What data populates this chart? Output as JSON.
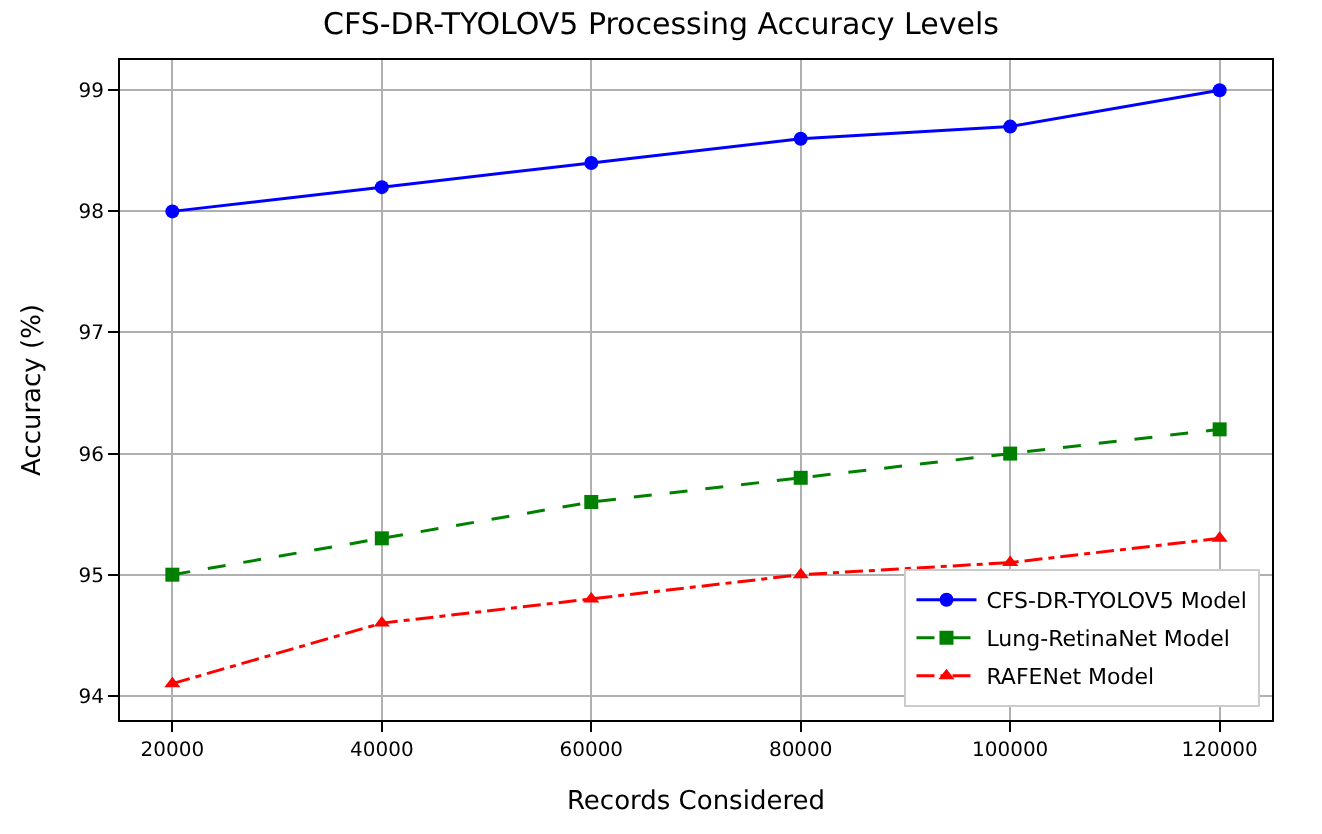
{
  "chart_data": {
    "type": "line",
    "title": "CFS-DR-TYOLOV5 Processing Accuracy Levels",
    "xlabel": "Records Considered",
    "ylabel": "Accuracy (%)",
    "x": [
      20000,
      40000,
      60000,
      80000,
      100000,
      120000
    ],
    "series": [
      {
        "name": "CFS-DR-TYOLOV5 Model",
        "color": "#0000ff",
        "marker": "circle",
        "line_style": "solid",
        "values": [
          98.0,
          98.2,
          98.4,
          98.6,
          98.7,
          99.0
        ]
      },
      {
        "name": "Lung-RetinaNet Model",
        "color": "#008000",
        "marker": "square",
        "line_style": "dashed",
        "values": [
          95.0,
          95.3,
          95.6,
          95.8,
          96.0,
          96.2
        ]
      },
      {
        "name": "RAFENet Model",
        "color": "#ff0000",
        "marker": "triangle",
        "line_style": "dashdot",
        "values": [
          94.1,
          94.6,
          94.8,
          95.0,
          95.1,
          95.3
        ]
      }
    ],
    "xlim": [
      15000,
      125000
    ],
    "xticks": [
      20000,
      40000,
      60000,
      80000,
      100000,
      120000
    ],
    "ylim": [
      93.8,
      99.25
    ],
    "yticks": [
      94,
      95,
      96,
      97,
      98,
      99
    ],
    "grid": true,
    "legend": "bottom right"
  }
}
